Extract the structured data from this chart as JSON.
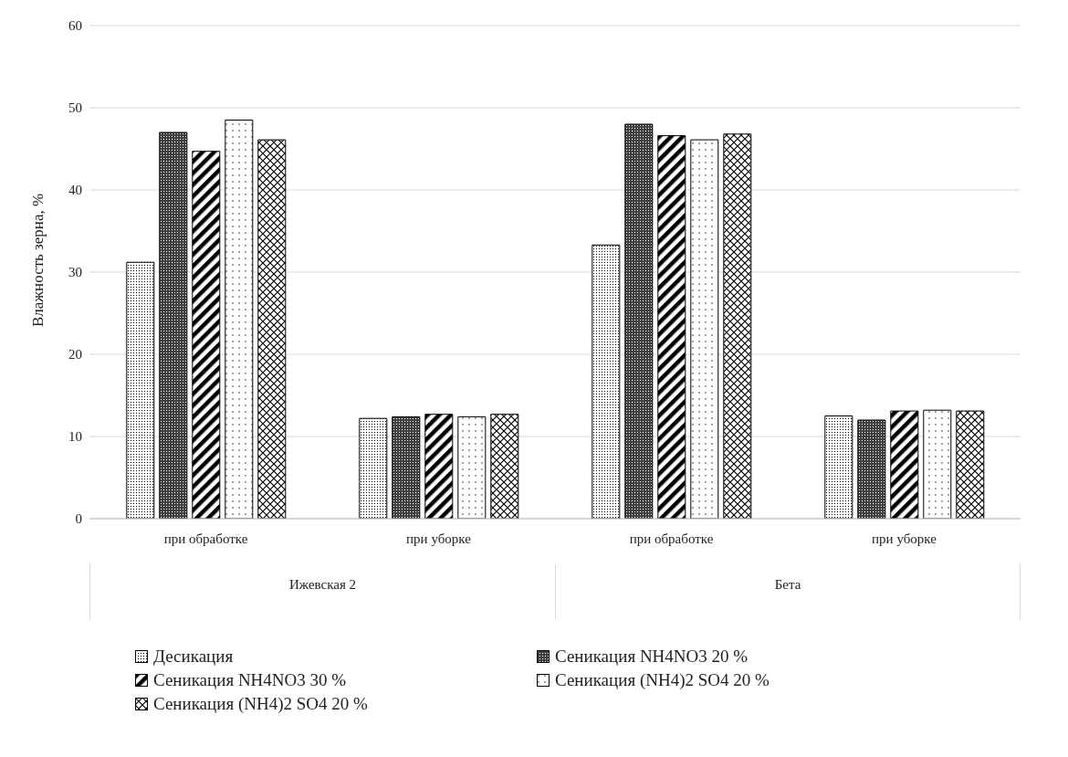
{
  "chart_data": {
    "type": "bar",
    "ylabel": "Влажность зерна, %",
    "categories": [
      "при обработке",
      "при уборке",
      "при обработке",
      "при уборке"
    ],
    "series": [
      {
        "name": "Десикация",
        "color": "#000000",
        "values": [
          31.2,
          12.2,
          33.3,
          12.5
        ]
      },
      {
        "name": "Сеникация NH4NO3 20 %",
        "color": "#000000",
        "values": [
          47.0,
          12.4,
          48.0,
          12.0
        ]
      },
      {
        "name": "Сеникация NH4NO3 30 %",
        "color": "#000000",
        "values": [
          44.7,
          12.7,
          46.6,
          13.1
        ]
      },
      {
        "name": "Сеникация (NH4)2 SO4 20 %",
        "color": "#000000",
        "values": [
          48.5,
          12.4,
          46.1,
          13.2
        ]
      },
      {
        "name": "Сеникация (NH4)2 SO4 20 %",
        "color": "#000000",
        "values": [
          46.1,
          12.7,
          46.8,
          13.1
        ]
      }
    ],
    "annotations": [
      "Ижевская 2",
      "Бета"
    ],
    "ylim": [
      0,
      60
    ],
    "yticks": [
      0,
      10,
      20,
      30,
      40,
      50,
      60
    ],
    "grid": "y",
    "legend": "bottom"
  }
}
